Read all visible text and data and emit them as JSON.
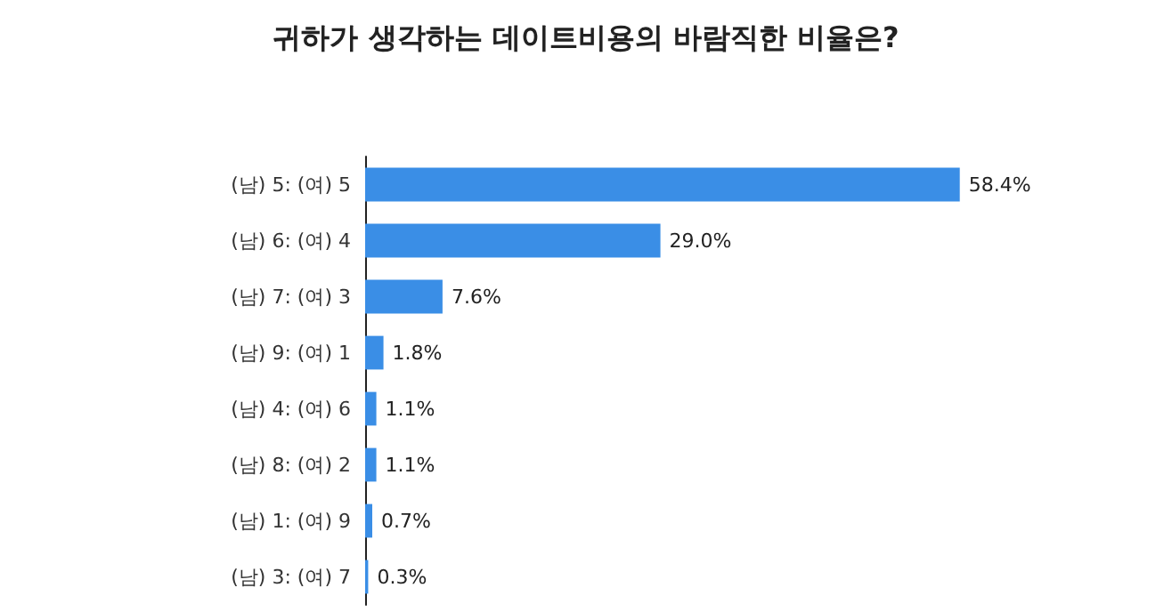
{
  "chart_data": {
    "type": "bar",
    "orientation": "horizontal",
    "title": "귀하가 생각하는 데이트비용의 바람직한 비율은?",
    "categories": [
      "(남) 5: (여) 5",
      "(남) 6: (여) 4",
      "(남) 7: (여) 3",
      "(남) 9: (여) 1",
      "(남) 4: (여) 6",
      "(남) 8: (여) 2",
      "(남) 1: (여) 9",
      "(남) 3: (여) 7"
    ],
    "values": [
      58.4,
      29.0,
      7.6,
      1.8,
      1.1,
      1.1,
      0.7,
      0.3
    ],
    "value_labels": [
      "58.4%",
      "29.0%",
      "7.6%",
      "1.8%",
      "1.1%",
      "1.1%",
      "0.7%",
      "0.3%"
    ],
    "color": "#3a8ee6"
  }
}
